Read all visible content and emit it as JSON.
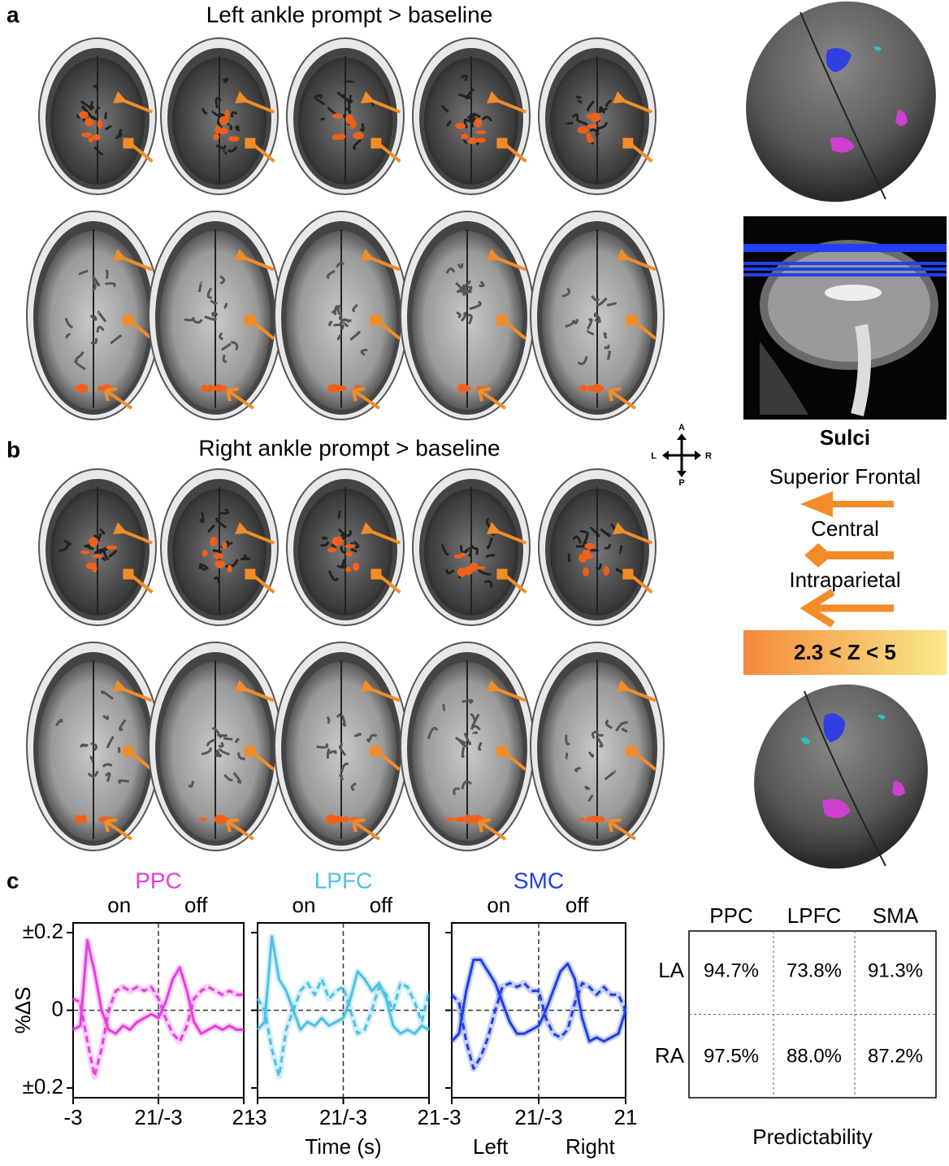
{
  "panels": {
    "a": {
      "label": "a",
      "title": "Left ankle prompt > baseline"
    },
    "b": {
      "label": "b",
      "title": "Right ankle prompt > baseline"
    },
    "c": {
      "label": "c"
    }
  },
  "orientation": {
    "anterior": "A",
    "posterior": "P",
    "left": "L",
    "right": "R"
  },
  "sulci_legend": {
    "title": "Sulci",
    "items": [
      "Superior Frontal",
      "Central",
      "Intraparietal"
    ]
  },
  "colorbar": {
    "label": "2.3 < Z < 5"
  },
  "chart_data": [
    {
      "type": "line",
      "title": "PPC",
      "color": "#e63de0",
      "annotations": [
        "on",
        "off"
      ],
      "ylabel": "%ΔS",
      "x": [
        0,
        2,
        4,
        6,
        8,
        10,
        12,
        14,
        16,
        18,
        20,
        22,
        24,
        26,
        28,
        30,
        32,
        34,
        36,
        38,
        40,
        42,
        44,
        46,
        48
      ],
      "xlim": [
        0,
        48
      ],
      "xticks": [
        {
          "value": 0,
          "label": "-3"
        },
        {
          "value": 24,
          "label": "21/-3"
        },
        {
          "value": 48,
          "label": "21"
        }
      ],
      "ylim": [
        -0.225,
        0.225
      ],
      "yticks": [
        {
          "value": 0.2,
          "label": "±0.2"
        },
        0,
        {
          "value": -0.2,
          "label": "±0.2"
        }
      ],
      "vline": 24,
      "hline": 0,
      "series": [
        {
          "name": "Left",
          "style": "solid",
          "values": [
            -0.05,
            -0.04,
            0.18,
            0.1,
            0.0,
            -0.05,
            -0.06,
            -0.04,
            -0.05,
            -0.03,
            -0.02,
            -0.01,
            -0.02,
            0.02,
            0.08,
            0.11,
            0.05,
            -0.03,
            -0.06,
            -0.05,
            -0.04,
            -0.05,
            -0.04,
            -0.05,
            -0.05
          ]
        },
        {
          "name": "Right",
          "style": "dashed",
          "values": [
            0.03,
            0.02,
            -0.08,
            -0.17,
            -0.1,
            0.0,
            0.05,
            0.06,
            0.05,
            0.06,
            0.05,
            0.06,
            0.03,
            -0.02,
            -0.06,
            -0.08,
            -0.04,
            0.03,
            0.05,
            0.06,
            0.05,
            0.04,
            0.05,
            0.04,
            0.04
          ]
        }
      ]
    },
    {
      "type": "line",
      "title": "LPFC",
      "color": "#4ec0e2",
      "annotations": [
        "on",
        "off"
      ],
      "xlabel": "Time (s)",
      "x": [
        0,
        2,
        4,
        6,
        8,
        10,
        12,
        14,
        16,
        18,
        20,
        22,
        24,
        26,
        28,
        30,
        32,
        34,
        36,
        38,
        40,
        42,
        44,
        46,
        48
      ],
      "xlim": [
        0,
        48
      ],
      "xticks": [
        {
          "value": 0,
          "label": "-3"
        },
        {
          "value": 24,
          "label": "21/-3"
        },
        {
          "value": 48,
          "label": "21"
        }
      ],
      "ylim": [
        -0.225,
        0.225
      ],
      "vline": 24,
      "hline": 0,
      "series": [
        {
          "name": "Left",
          "style": "solid",
          "values": [
            -0.05,
            -0.03,
            0.19,
            0.08,
            0.05,
            0.0,
            -0.05,
            -0.03,
            -0.04,
            -0.02,
            -0.04,
            -0.03,
            -0.02,
            0.03,
            0.1,
            0.08,
            0.05,
            0.07,
            0.03,
            -0.04,
            -0.06,
            -0.05,
            -0.06,
            -0.04,
            -0.05
          ]
        },
        {
          "name": "Right",
          "style": "dashed",
          "values": [
            0.03,
            0.0,
            -0.1,
            -0.17,
            -0.05,
            0.0,
            0.05,
            0.07,
            0.04,
            0.08,
            0.03,
            0.05,
            0.06,
            0.0,
            -0.06,
            -0.05,
            0.0,
            0.06,
            0.04,
            0.0,
            0.07,
            0.06,
            0.02,
            -0.03,
            0.05
          ]
        }
      ]
    },
    {
      "type": "line",
      "title": "SMC",
      "color": "#1f3fe0",
      "annotations": [
        "on",
        "off"
      ],
      "x": [
        0,
        2,
        4,
        6,
        8,
        10,
        12,
        14,
        16,
        18,
        20,
        22,
        24,
        26,
        28,
        30,
        32,
        34,
        36,
        38,
        40,
        42,
        44,
        46,
        48
      ],
      "xlim": [
        0,
        48
      ],
      "xticks": [
        {
          "value": 0,
          "label": "-3"
        },
        {
          "value": 24,
          "label": "21/-3"
        },
        {
          "value": 48,
          "label": "21"
        }
      ],
      "ylim": [
        -0.225,
        0.225
      ],
      "vline": 24,
      "hline": 0,
      "series": [
        {
          "name": "Left",
          "style": "solid",
          "values": [
            -0.08,
            -0.06,
            0.05,
            0.13,
            0.13,
            0.1,
            0.07,
            0.02,
            -0.03,
            -0.06,
            -0.06,
            -0.05,
            -0.04,
            0.0,
            0.05,
            0.1,
            0.12,
            0.08,
            -0.02,
            -0.08,
            -0.07,
            -0.08,
            -0.07,
            -0.06,
            0.0
          ]
        },
        {
          "name": "Right",
          "style": "dashed",
          "values": [
            0.04,
            0.02,
            -0.08,
            -0.15,
            -0.12,
            -0.07,
            0.0,
            0.06,
            0.07,
            0.06,
            0.07,
            0.05,
            0.05,
            -0.02,
            -0.06,
            -0.07,
            -0.05,
            0.02,
            0.07,
            0.06,
            0.04,
            0.06,
            0.04,
            0.04,
            0.0
          ]
        }
      ]
    }
  ],
  "table": {
    "columns": [
      "PPC",
      "LPFC",
      "SMA"
    ],
    "rows": [
      {
        "label": "LA",
        "cells": [
          "94.7%",
          "73.8%",
          "91.3%"
        ]
      },
      {
        "label": "RA",
        "cells": [
          "97.5%",
          "88.0%",
          "87.2%"
        ]
      }
    ],
    "caption": "Predictability"
  }
}
